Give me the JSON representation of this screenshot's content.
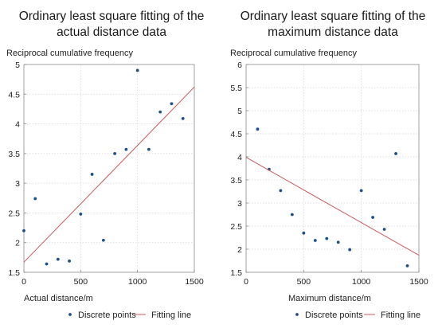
{
  "chart_data": [
    {
      "type": "scatter",
      "title_lines": [
        "Ordinary least square fitting of the",
        "actual distance data"
      ],
      "ylabel": "Reciprocal cumulative frequency",
      "xlabel": "Actual distance/m",
      "xlim": [
        0,
        1500
      ],
      "ylim": [
        1.5,
        5
      ],
      "xticks": [
        0,
        500,
        1000,
        1500
      ],
      "yticks": [
        1.5,
        2,
        2.5,
        3,
        3.5,
        4,
        4.5,
        5
      ],
      "ytick_labels": [
        "1.5",
        "2",
        "2.5",
        "3",
        "3.5",
        "4",
        "4.5",
        "5"
      ],
      "grid": true,
      "legend_position": "bottom",
      "series": [
        {
          "name": "Discrete points",
          "kind": "points",
          "color": "#1f4f8a",
          "x": [
            0,
            100,
            200,
            300,
            400,
            500,
            600,
            700,
            800,
            900,
            1000,
            1100,
            1200,
            1300,
            1400
          ],
          "y": [
            2.2,
            2.74,
            1.64,
            1.72,
            1.69,
            2.48,
            3.15,
            2.04,
            3.5,
            3.57,
            4.9,
            3.57,
            4.2,
            4.34,
            4.09
          ]
        },
        {
          "name": "Fitting line",
          "kind": "line",
          "color": "#c95a5a",
          "x": [
            0,
            1500
          ],
          "y": [
            1.67,
            4.62
          ]
        }
      ]
    },
    {
      "type": "scatter",
      "title_lines": [
        "Ordinary least square fitting of the",
        "maximum distance data"
      ],
      "ylabel": "Reciprocal cumulative frequency",
      "xlabel": "Maximum distance/m",
      "xlim": [
        0,
        1500
      ],
      "ylim": [
        1.5,
        6
      ],
      "xticks": [
        0,
        500,
        1000,
        1500
      ],
      "yticks": [
        1.5,
        2,
        2.5,
        3,
        3.5,
        4,
        4.5,
        5,
        5.5,
        6
      ],
      "ytick_labels": [
        "1.5",
        "2",
        "2.5",
        "3",
        "3.5",
        "4",
        "4.5",
        "5",
        "5.5",
        "6"
      ],
      "grid": true,
      "legend_position": "bottom",
      "series": [
        {
          "name": "Discrete points",
          "kind": "points",
          "color": "#1f4f8a",
          "x": [
            100,
            200,
            300,
            400,
            500,
            600,
            700,
            800,
            900,
            1000,
            1100,
            1200,
            1300,
            1400
          ],
          "y": [
            4.6,
            3.73,
            3.27,
            2.75,
            2.35,
            2.19,
            2.23,
            2.15,
            1.99,
            3.27,
            2.69,
            2.43,
            4.07,
            1.64
          ]
        },
        {
          "name": "Fitting line",
          "kind": "line",
          "color": "#c95a5a",
          "x": [
            0,
            1500
          ],
          "y": [
            3.99,
            1.87
          ]
        }
      ]
    }
  ]
}
